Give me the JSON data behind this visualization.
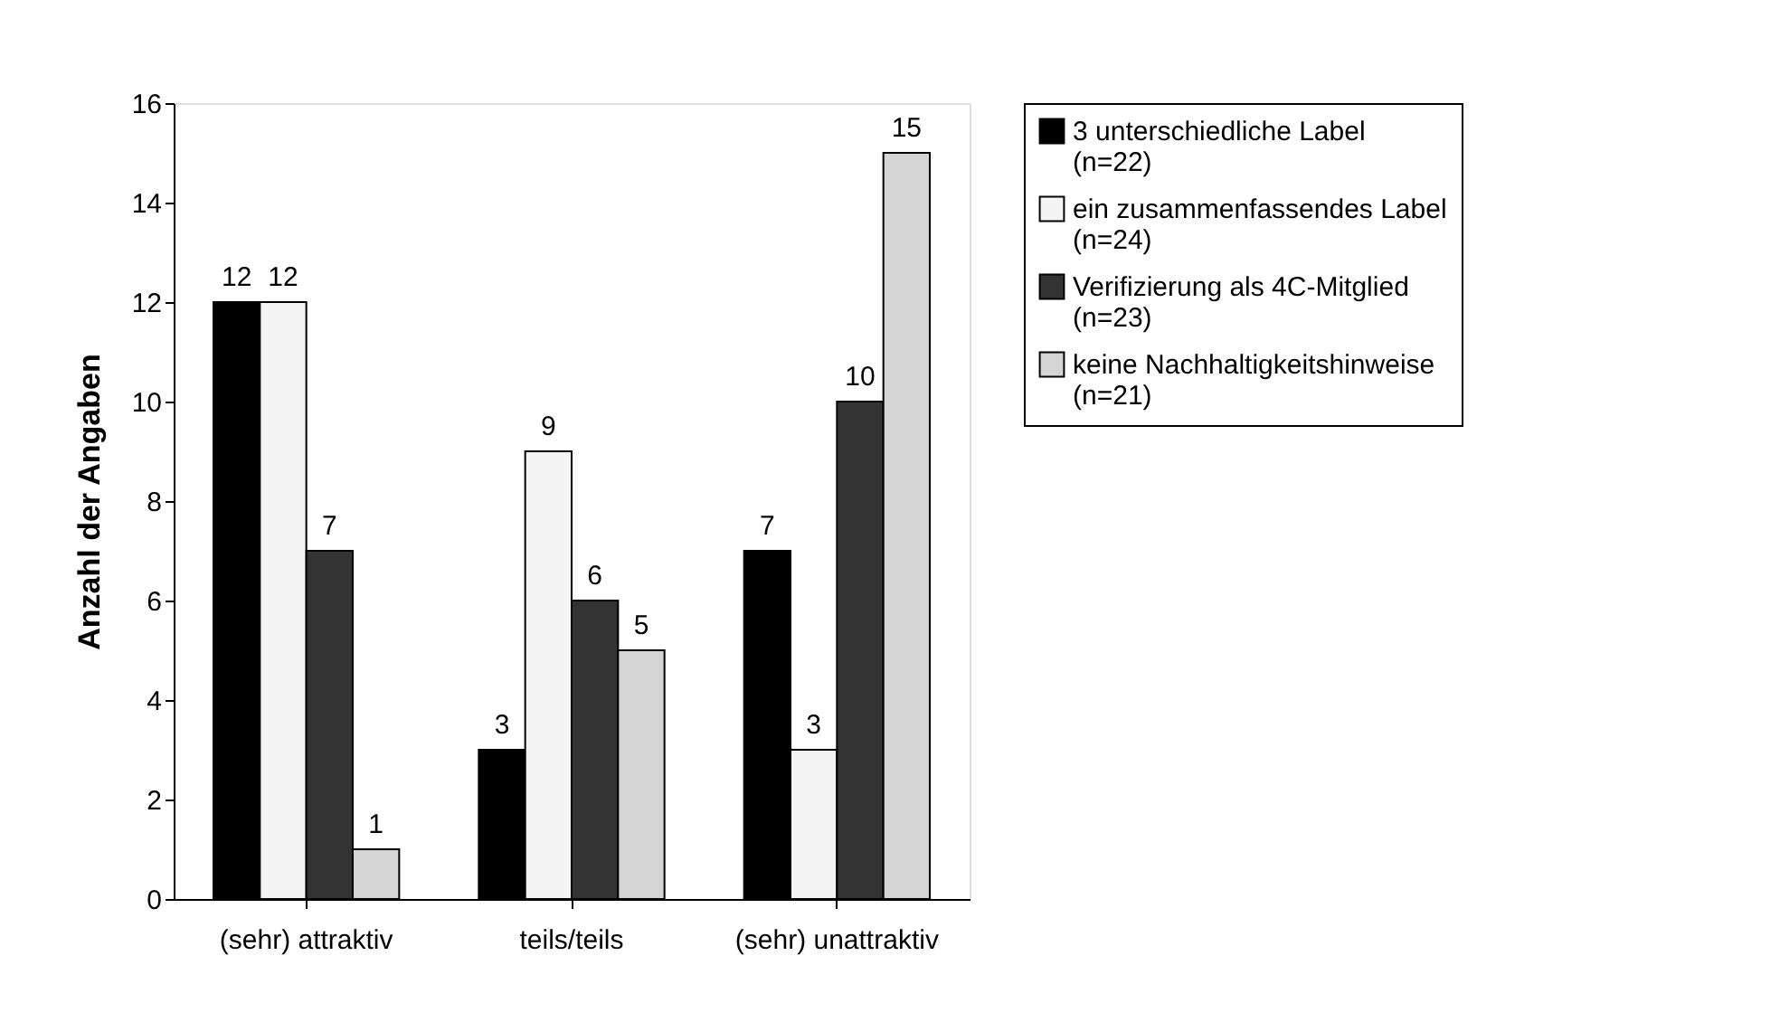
{
  "chart_data": {
    "type": "bar",
    "ylabel": "Anzahl der Angaben",
    "categories": [
      "(sehr) attraktiv",
      "teils/teils",
      "(sehr) unattraktiv"
    ],
    "series": [
      {
        "name": "3 unterschiedliche Label\n(n=22)",
        "color": "#000000",
        "values": [
          12,
          3,
          7
        ]
      },
      {
        "name": "ein zusammenfassendes Label\n(n=24)",
        "color": "#f4f4f4",
        "values": [
          12,
          9,
          3
        ]
      },
      {
        "name": "Verifizierung als 4C-Mitglied\n(n=23)",
        "color": "#333333",
        "values": [
          7,
          6,
          10
        ]
      },
      {
        "name": "keine Nachhaltigkeitshinweise\n(n=21)",
        "color": "#d4d4d4",
        "values": [
          1,
          5,
          15
        ]
      }
    ],
    "ylim": [
      0,
      16
    ],
    "yticks": [
      0,
      2,
      4,
      6,
      8,
      10,
      12,
      14,
      16
    ],
    "grid": false,
    "legend": "right",
    "data_labels": true
  }
}
